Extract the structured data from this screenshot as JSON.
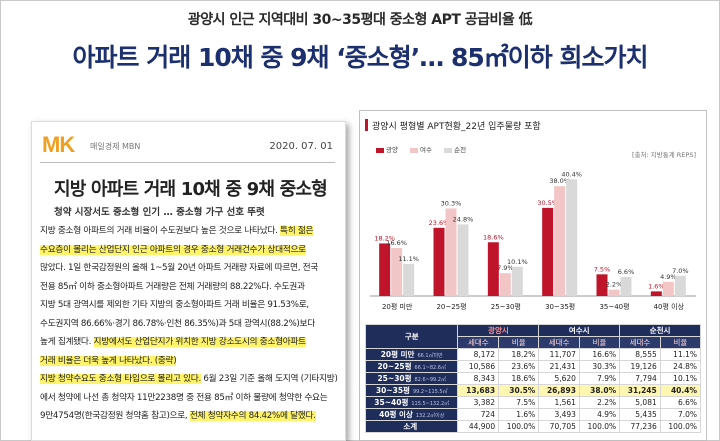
{
  "header": {
    "subheadline": "광양시 인근 지역대비 30~35평대 중소형 APT 공급비율 低",
    "headline": "아파트 거래 10채 중 9채 ‘중소형’… 85㎡이하 희소가치"
  },
  "article": {
    "logo": "MK",
    "logo_sub": "매일경제 MBN",
    "date": "2020. 07. 01",
    "title": "지방 아파트 거래 10채 중 9채 중소형",
    "subtitle": "청약 시장서도 중소형 인기 … 중소형 가구 선호 뚜렷",
    "lines": [
      {
        "a": "지방 중소형 아파트의 거래 비율이 수도권보다 높은 것으로 나타났다. ",
        "b": "특히 젊은"
      },
      {
        "a": "수요층이 몰리는 산업단지 인근 아파트의 경우 중소형 거래건수가 상대적으로"
      },
      {
        "a": "많았다. 1일 한국감정원의 올해 1~5월 20년 아파트 거래량 자료에 따르면, 전국"
      },
      {
        "a": "전용 85㎡ 이하 중소형아파트 거래량은 전체 거래량의 88.22%다. 수도권과"
      },
      {
        "a": "지방 5대 광역시를 제외한 기타 지방의 중소형아파트 거래 비율은 91.53%로,"
      },
      {
        "a": "수도권지역 86.66%·경기 86.78%·인천 86.35%)과 5대 광역시(88.2%)보다"
      },
      {
        "a": "높게 집계됐다. ",
        "b": "지방에서도 산업단지가 위치한 지방 강소도시의 중소형아파트"
      },
      {
        "a": "거래 비율은 더욱 높게 나타났다. (중략)"
      },
      {
        "a": "지방 청약수요도 중소형 타입으로 몰리고 있다.",
        "b": " 6월 23일 기준 올해 도지역 (기타지방)"
      },
      {
        "a": "에서 청약에 나선 총 청약자 11만2238명 중 전용 85㎡ 이하 물량에 청약한 수요는"
      },
      {
        "a": "9만4754명(한국감정원 청약홈 참고)으로, ",
        "b": "전체 청약자수의 84.42%에 달했다."
      }
    ]
  },
  "panel": {
    "title": "광양시 평형별 APT현황_22년 입주물량 포함",
    "title_note": ""
  },
  "chart_data": {
    "type": "bar",
    "unit": "[출처: 지방통계 REPS]",
    "categories": [
      "20평 미만",
      "20~25평",
      "25~30평",
      "30~35평",
      "35~40평",
      "40평 이상"
    ],
    "series": [
      {
        "name": "광양",
        "values": [
          18.2,
          23.6,
          18.6,
          30.5,
          7.5,
          1.6
        ],
        "color": "#c0142a"
      },
      {
        "name": "여수",
        "values": [
          16.6,
          30.3,
          7.9,
          38.0,
          2.2,
          4.9
        ],
        "color": "#f2c6c6"
      },
      {
        "name": "순천",
        "values": [
          11.1,
          24.8,
          10.1,
          40.4,
          6.6,
          7.0
        ],
        "color": "#d9d9d9"
      }
    ],
    "ylim": [
      0,
      45
    ]
  },
  "table": {
    "corner": "구분",
    "groups": [
      "광양시",
      "여수시",
      "순천시"
    ],
    "sub": [
      "세대수",
      "비율",
      "세대수",
      "비율",
      "세대수",
      "비율"
    ],
    "rows": [
      [
        "20평 미만",
        "66.1㎡미만",
        "8,172",
        "18.2%",
        "11,707",
        "16.6%",
        "8,555",
        "11.1%"
      ],
      [
        "20~25평",
        "66.1~82.6㎡",
        "10,586",
        "23.6%",
        "21,431",
        "30.3%",
        "19,126",
        "24.8%"
      ],
      [
        "25~30평",
        "82.6~99.2㎡",
        "8,343",
        "18.6%",
        "5,620",
        "7.9%",
        "7,794",
        "10.1%"
      ],
      [
        "30~35평",
        "99.2~115.5㎡",
        "13,683",
        "30.5%",
        "26,893",
        "38.0%",
        "31,245",
        "40.4%"
      ],
      [
        "35~40평",
        "115.5~132.2㎡",
        "3,382",
        "7.5%",
        "1,561",
        "2.2%",
        "5,081",
        "6.6%"
      ],
      [
        "40평 이상",
        "132.2㎡이상",
        "724",
        "1.6%",
        "3,493",
        "4.9%",
        "5,435",
        "7.0%"
      ],
      [
        "소계",
        "",
        "44,900",
        "100.0%",
        "70,705",
        "100.0%",
        "77,236",
        "100.0%"
      ]
    ]
  }
}
